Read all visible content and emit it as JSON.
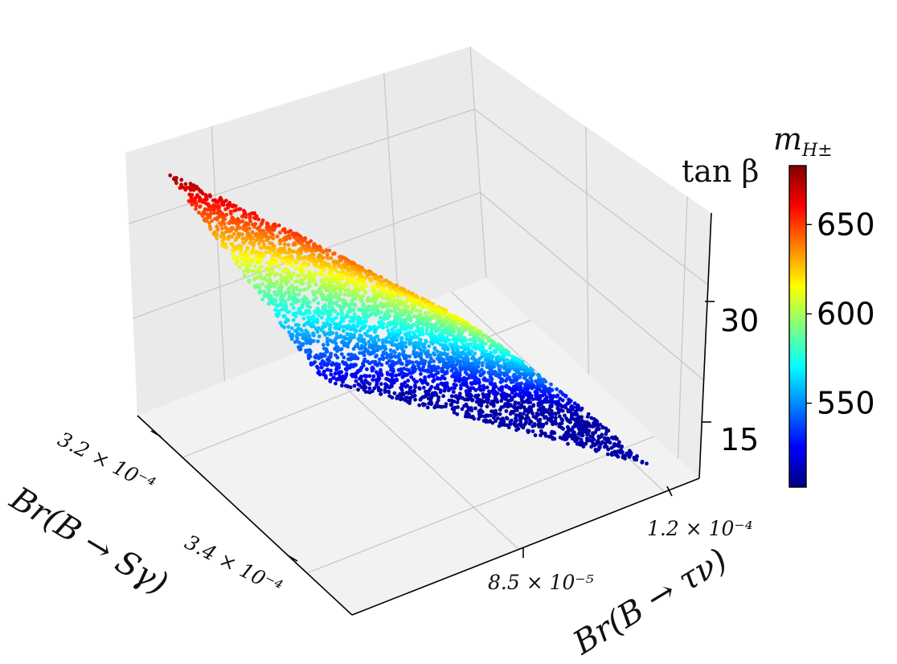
{
  "chart_data": {
    "type": "scatter",
    "dims": "3d",
    "title": "",
    "xlabel": "Br(B → Sγ)",
    "ylabel": "Br(B → τν)",
    "zlabel": "tan β",
    "colorbar_label": "m_{H±}",
    "colorbar_label_main": "m",
    "colorbar_label_sub": "H±",
    "xticks": [
      {
        "value": 0.00032,
        "label": "3.2 × 10⁻⁴"
      },
      {
        "value": 0.00034,
        "label": "3.4 × 10⁻⁴"
      }
    ],
    "yticks": [
      {
        "value": 8.5e-05,
        "label": "8.5 × 10⁻⁵"
      },
      {
        "value": 0.00012,
        "label": "1.2 × 10⁻⁴"
      }
    ],
    "zticks": [
      {
        "value": 15,
        "label": "15"
      },
      {
        "value": 30,
        "label": "30"
      }
    ],
    "xlim": [
      0.000313,
      0.000353
    ],
    "ylim": [
      6e-05,
      0.000127
    ],
    "zlim": [
      6,
      52
    ],
    "color_range": [
      503,
      683
    ],
    "colorbar_ticks": [
      550,
      600,
      650
    ],
    "colormap": "jet",
    "grid": true,
    "series": [
      {
        "description_values": "scatter surface: tan β decreasing from ~45 at low Br(B→Sγ)/low Br(B→τν) to ~10 at high Br(B→τν); color = m_{H±}",
        "corners": [
          {
            "x": 0.000318,
            "y": 6.2e-05,
            "z": 47,
            "c": 683
          },
          {
            "x": 0.000322,
            "y": 0.000102,
            "z": 18,
            "c": 575
          },
          {
            "x": 0.000339,
            "y": 7.8e-05,
            "z": 12,
            "c": 505
          },
          {
            "x": 0.000333,
            "y": 0.000124,
            "z": 10,
            "c": 540
          }
        ]
      }
    ]
  }
}
